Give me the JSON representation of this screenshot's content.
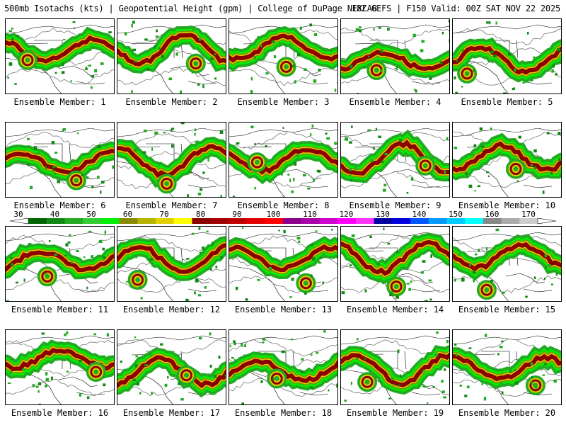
{
  "header": {
    "left_text": "500mb Isotachs (kts) | Geopotential Height (gpm) | College of DuPage NEXLAB",
    "right_text": "18Z GEFS | F150 Valid: 00Z SAT NOV 22 2025"
  },
  "panels": [
    {
      "caption": "Ensemble Member: 1"
    },
    {
      "caption": "Ensemble Member: 2"
    },
    {
      "caption": "Ensemble Member: 3"
    },
    {
      "caption": "Ensemble Member: 4"
    },
    {
      "caption": "Ensemble Member: 5"
    },
    {
      "caption": "Ensemble Member: 6"
    },
    {
      "caption": "Ensemble Member: 7"
    },
    {
      "caption": "Ensemble Member: 8"
    },
    {
      "caption": "Ensemble Member: 9"
    },
    {
      "caption": "Ensemble Member: 10"
    },
    {
      "caption": "Ensemble Member: 11"
    },
    {
      "caption": "Ensemble Member: 12"
    },
    {
      "caption": "Ensemble Member: 13"
    },
    {
      "caption": "Ensemble Member: 14"
    },
    {
      "caption": "Ensemble Member: 15"
    },
    {
      "caption": "Ensemble Member: 16"
    },
    {
      "caption": "Ensemble Member: 17"
    },
    {
      "caption": "Ensemble Member: 18"
    },
    {
      "caption": "Ensemble Member: 19"
    },
    {
      "caption": "Ensemble Member: 20"
    }
  ],
  "colorbar": {
    "tick_labels": [
      "30",
      "40",
      "50",
      "60",
      "70",
      "80",
      "90",
      "100",
      "110",
      "120",
      "130",
      "140",
      "150",
      "160",
      "170"
    ],
    "colors": [
      "#006400",
      "#118811",
      "#22aa22",
      "#33cc33",
      "#00ee00",
      "#8a8a00",
      "#b5b500",
      "#e0d000",
      "#ffff00",
      "#8b0000",
      "#a00000",
      "#c00000",
      "#e00000",
      "#ff0000",
      "#8b008b",
      "#aa00aa",
      "#cc00cc",
      "#ff00ff",
      "#ff33ff",
      "#0000a0",
      "#0000dd",
      "#0055ff",
      "#0099ff",
      "#00ccff",
      "#00ffff",
      "#888888",
      "#aaaaaa",
      "#cccccc"
    ]
  }
}
